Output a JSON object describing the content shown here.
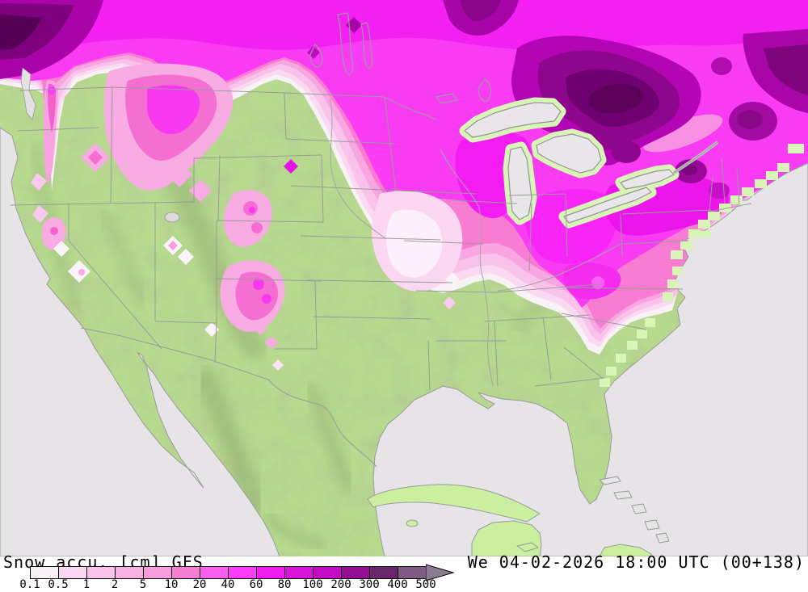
{
  "footer": {
    "title": "Snow accu. [cm] GFS",
    "variable": "Snow accu.",
    "unit": "cm",
    "model": "GFS",
    "datetime": "We 04-02-2026 18:00 UTC (00+138)"
  },
  "legend": {
    "tick_labels": [
      "0.1",
      "0.5",
      "1",
      "2",
      "5",
      "10",
      "20",
      "40",
      "60",
      "80",
      "100",
      "200",
      "300",
      "400",
      "500"
    ],
    "segment_colors": [
      "#f7f1f6",
      "#fbd8f2",
      "#f9c3eb",
      "#f9b0e5",
      "#f89cde",
      "#f77fd3",
      "#fa5ff0",
      "#fb3cfa",
      "#ef1bef",
      "#d714d7",
      "#c20bc2",
      "#930d93",
      "#6b256b",
      "#7e5a84"
    ],
    "overflow_arrow_color": "#8b7b90"
  },
  "colors": {
    "ocean": "#e7e4e7",
    "lake": "#e9e6e9",
    "land_green": "#b7da8f",
    "coastal_cell_green": "#d9f4b7",
    "border_grey": "#9b9b9b",
    "snow_trace_white": "#f8f2f7",
    "snow_light_pink": "#f9c2ea",
    "snow_pink": "#f87cd2",
    "snow_magenta": "#f93cf3",
    "snow_vivid_magenta": "#ef1bef",
    "snow_dark_purple": "#8d068d",
    "snow_deepest_purple": "#5c005c",
    "text_black": "#000000"
  }
}
